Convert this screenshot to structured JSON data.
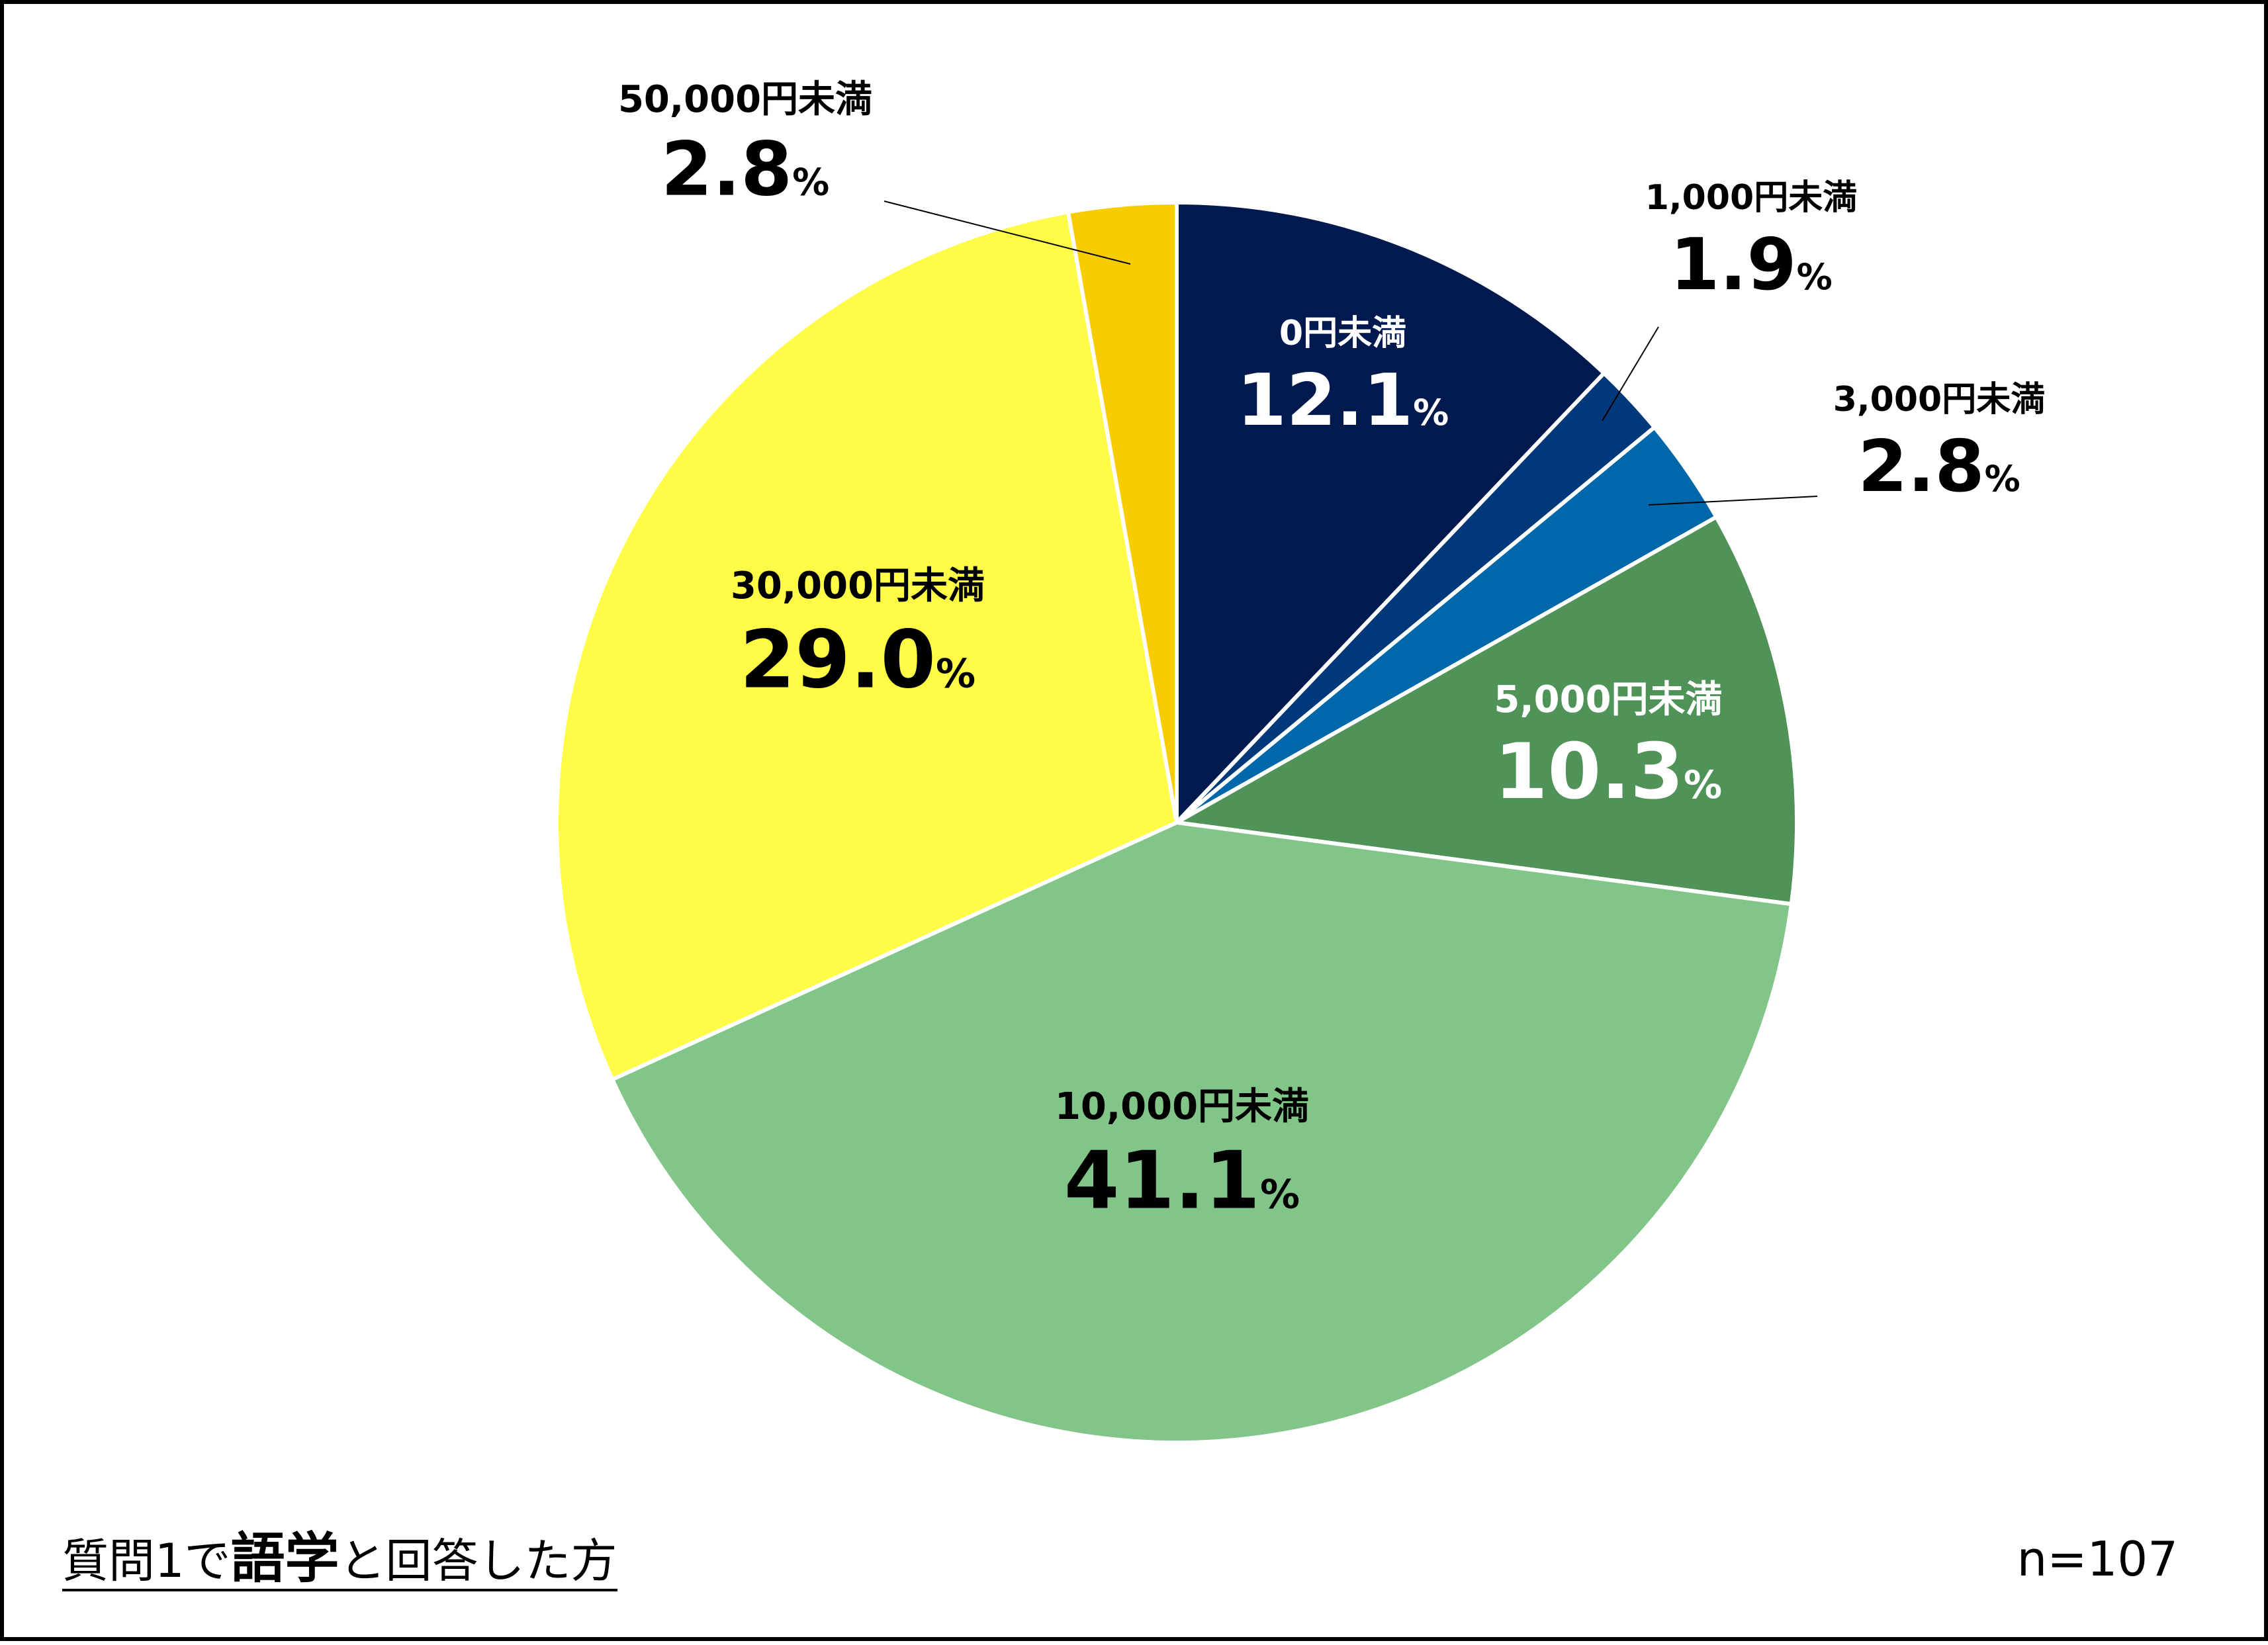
{
  "chart_data": {
    "type": "pie",
    "unit": "%",
    "slices": [
      {
        "label": "0円未満",
        "value": 12.1,
        "color": "#001a4f",
        "text_color": "#ffffff"
      },
      {
        "label": "1,000円未満",
        "value": 1.9,
        "color": "#00387a",
        "text_color": "#000000"
      },
      {
        "label": "3,000円未満",
        "value": 2.8,
        "color": "#0068aa",
        "text_color": "#000000"
      },
      {
        "label": "5,000円未満",
        "value": 10.3,
        "color": "#4f9358",
        "text_color": "#ffffff"
      },
      {
        "label": "10,000円未満",
        "value": 41.1,
        "color": "#82c588",
        "text_color": "#000000"
      },
      {
        "label": "30,000円未満",
        "value": 29.0,
        "color": "#fffb47",
        "text_color": "#000000"
      },
      {
        "label": "50,000円未満",
        "value": 2.8,
        "color": "#f7cd00",
        "text_color": "#000000"
      }
    ]
  },
  "caption": {
    "part1": "質問1で",
    "emphasis": "語学",
    "part2": "と回答した方"
  },
  "sample_size": "n=107"
}
